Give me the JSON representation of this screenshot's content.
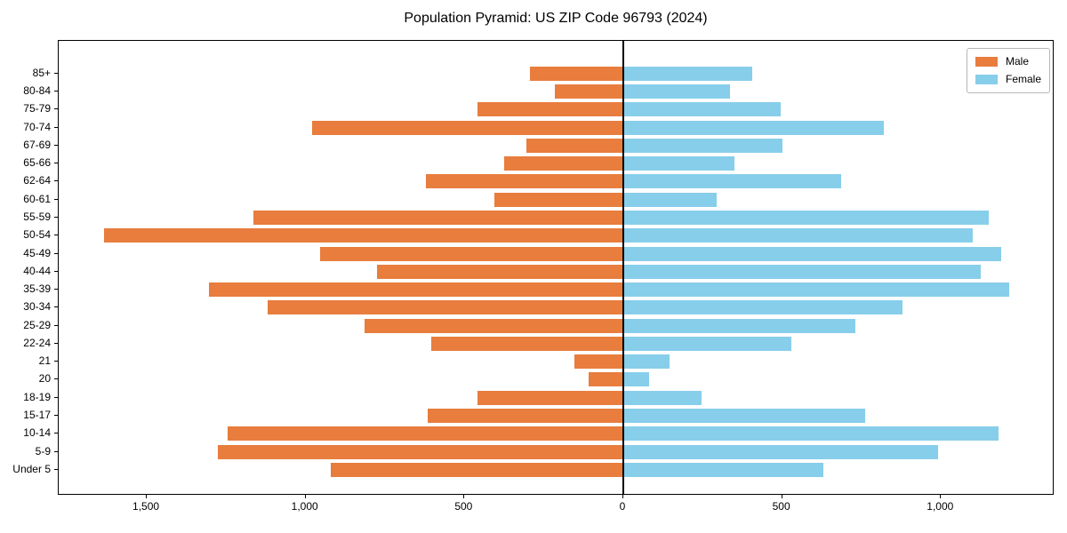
{
  "title": "Population Pyramid: US ZIP Code 96793 (2024)",
  "colors": {
    "male": "#e87d3e",
    "female": "#87ceeb",
    "axis": "#000000",
    "legend_border": "#b7b7b7",
    "background": "#ffffff"
  },
  "chart_data": {
    "type": "bar",
    "subtype": "population-pyramid",
    "orientation": "horizontal",
    "title": "Population Pyramid: US ZIP Code 96793 (2024)",
    "xlabel": "",
    "ylabel": "",
    "grid": false,
    "categories": [
      "85+",
      "80-84",
      "75-79",
      "70-74",
      "67-69",
      "65-66",
      "62-64",
      "60-61",
      "55-59",
      "50-54",
      "45-49",
      "40-44",
      "35-39",
      "30-34",
      "25-29",
      "22-24",
      "21",
      "20",
      "18-19",
      "15-17",
      "10-14",
      "5-9",
      "Under 5"
    ],
    "series": [
      {
        "name": "Male",
        "side": "left",
        "color": "#e87d3e",
        "values": [
          295,
          215,
          460,
          980,
          305,
          375,
          620,
          405,
          1165,
          1635,
          955,
          775,
          1305,
          1120,
          815,
          605,
          155,
          110,
          460,
          615,
          1245,
          1275,
          920
        ]
      },
      {
        "name": "Female",
        "side": "right",
        "color": "#87ceeb",
        "values": [
          405,
          335,
          495,
          820,
          500,
          350,
          685,
          295,
          1150,
          1100,
          1190,
          1125,
          1215,
          880,
          730,
          530,
          145,
          80,
          245,
          760,
          1180,
          990,
          630
        ]
      }
    ],
    "x_axis": {
      "xlim": [
        -1780,
        1360
      ],
      "ticks": [
        {
          "value": -1500,
          "label": "1,500"
        },
        {
          "value": -1000,
          "label": "1,000"
        },
        {
          "value": -500,
          "label": "500"
        },
        {
          "value": 0,
          "label": "0"
        },
        {
          "value": 500,
          "label": "500"
        },
        {
          "value": 1000,
          "label": "1,000"
        }
      ]
    },
    "legend": {
      "position": "upper right",
      "entries": [
        "Male",
        "Female"
      ]
    }
  }
}
